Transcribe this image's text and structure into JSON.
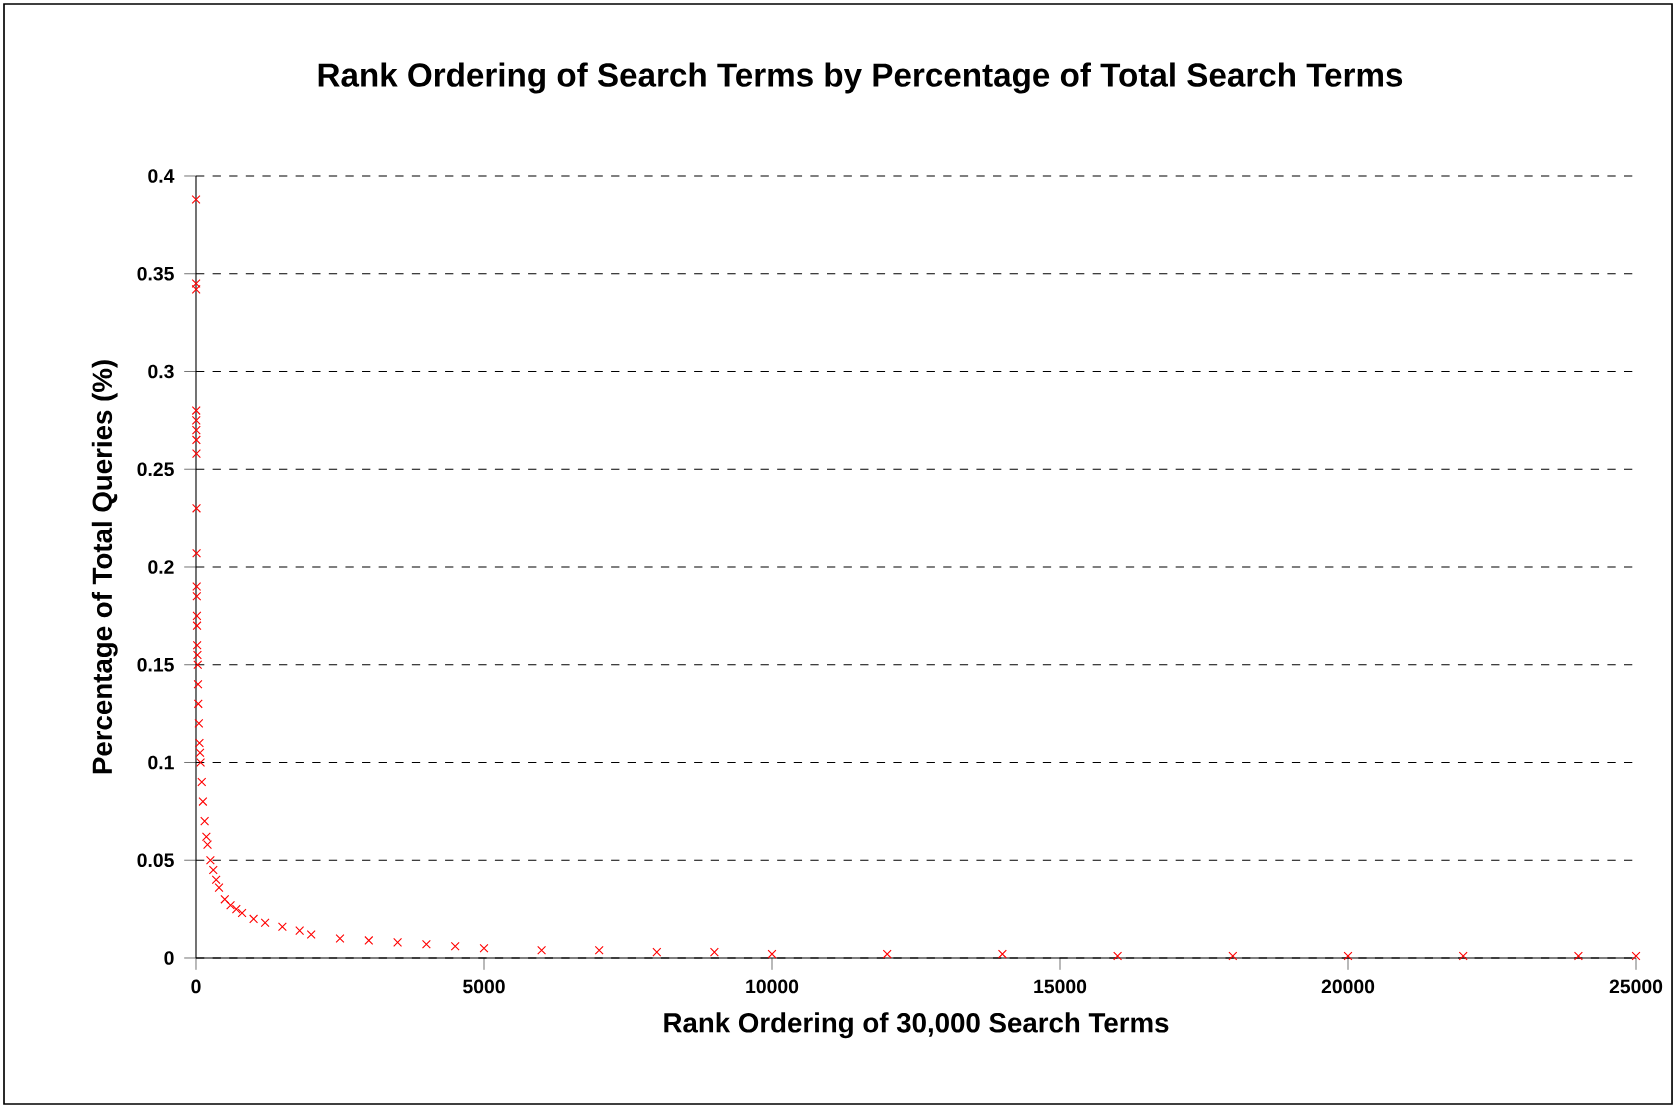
{
  "chart_data": {
    "type": "scatter",
    "title": "Rank Ordering of Search Terms by Percentage of Total Search Terms",
    "xlabel": "Rank Ordering of 30,000 Search Terms",
    "ylabel": "Percentage of Total Queries (%)",
    "series": [
      {
        "color": "#ff0000",
        "x": [
          1,
          2,
          3,
          4,
          5,
          6,
          7,
          8,
          9,
          10,
          12,
          14,
          16,
          18,
          20,
          25,
          30,
          35,
          40,
          50,
          60,
          70,
          80,
          100,
          120,
          150,
          180,
          200,
          250,
          300,
          350,
          400,
          500,
          600,
          700,
          800,
          1000,
          1200,
          1500,
          1800,
          2000,
          2500,
          3000,
          3500,
          4000,
          4500,
          5000,
          6000,
          7000,
          8000,
          9000,
          10000,
          12000,
          14000,
          16000,
          18000,
          20000,
          22000,
          24000,
          25000
        ],
        "values": [
          0.388,
          0.345,
          0.342,
          0.28,
          0.275,
          0.27,
          0.265,
          0.258,
          0.23,
          0.207,
          0.19,
          0.185,
          0.175,
          0.17,
          0.16,
          0.155,
          0.15,
          0.14,
          0.13,
          0.12,
          0.11,
          0.105,
          0.1,
          0.09,
          0.08,
          0.07,
          0.062,
          0.058,
          0.05,
          0.045,
          0.04,
          0.036,
          0.03,
          0.027,
          0.025,
          0.023,
          0.02,
          0.018,
          0.016,
          0.014,
          0.012,
          0.01,
          0.009,
          0.008,
          0.007,
          0.006,
          0.005,
          0.004,
          0.004,
          0.003,
          0.003,
          0.002,
          0.002,
          0.002,
          0.001,
          0.001,
          0.001,
          0.001,
          0.001,
          0.001
        ]
      }
    ],
    "xlim": [
      0,
      25000
    ],
    "ylim": [
      0,
      0.4
    ],
    "xticks": [
      0,
      5000,
      10000,
      15000,
      20000,
      25000
    ],
    "yticks": [
      0,
      0.05,
      0.1,
      0.15,
      0.2,
      0.25,
      0.3,
      0.35,
      0.4
    ],
    "grid": "y",
    "marker": "cross"
  }
}
